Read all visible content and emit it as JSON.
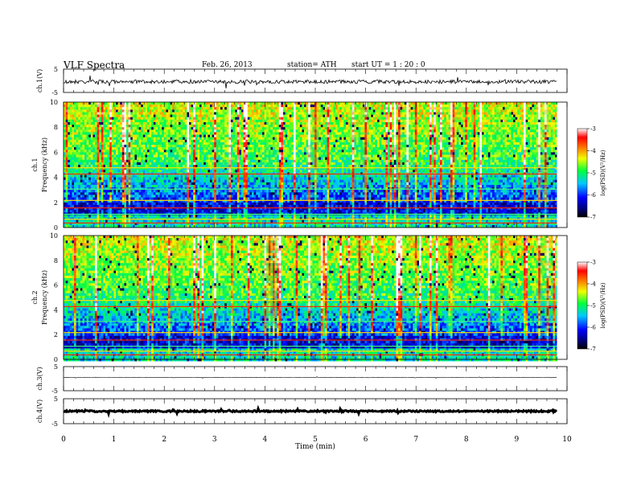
{
  "header": {
    "title": "VLF Spectra",
    "date": "Feb. 26, 2013",
    "station": "station= ATH",
    "start": "start  UT =   1  : 20 : 0"
  },
  "chart_data": [
    {
      "type": "line",
      "panel": "ch1-waveform",
      "ylabel": "ch.1(V)",
      "ylim": [
        -5,
        5
      ],
      "y_ticks": [
        "5",
        "-5"
      ],
      "x": [
        0,
        9.8
      ],
      "series": [
        {
          "values": [
            -0.4,
            -0.4
          ]
        }
      ]
    },
    {
      "type": "heatmap",
      "panel": "ch1-spectrogram",
      "ylabel": "ch.1\nFrequency  (kHz)",
      "ylim": [
        0,
        10
      ],
      "y_ticks": [
        "0",
        "2",
        "4",
        "6",
        "8",
        "10"
      ],
      "x_range": [
        0,
        9.8
      ],
      "colorbar": {
        "label": "log(PSD)(V²/Hz)",
        "ticks": [
          "-3",
          "-4",
          "-5",
          "-6",
          "-7"
        ],
        "range": [
          -7,
          -3
        ]
      }
    },
    {
      "type": "heatmap",
      "panel": "ch2-spectrogram",
      "ylabel": "ch.2\nFrequency  (kHz)",
      "ylim": [
        0,
        10
      ],
      "y_ticks": [
        "0",
        "2",
        "4",
        "6",
        "8",
        "10"
      ],
      "x_range": [
        0,
        9.8
      ],
      "colorbar": {
        "label": "log(PSD)(V²/Hz)",
        "ticks": [
          "-3",
          "-4",
          "-5",
          "-6",
          "-7"
        ],
        "range": [
          -7,
          -3
        ]
      }
    },
    {
      "type": "line",
      "panel": "ch3-waveform",
      "ylabel": "ch.3(V)",
      "ylim": [
        -5,
        5
      ],
      "y_ticks": [
        "5",
        "-5"
      ],
      "x": [
        0,
        9.8
      ],
      "series": [
        {
          "values": [
            0.5,
            0.5
          ]
        }
      ]
    },
    {
      "type": "line",
      "panel": "ch4-waveform",
      "ylabel": "ch.4(V)",
      "ylim": [
        -5,
        5
      ],
      "y_ticks": [
        "5",
        "-5"
      ],
      "x": [
        0,
        9.8
      ],
      "series": [
        {
          "values": [
            0,
            0
          ]
        }
      ]
    }
  ],
  "x_axis": {
    "label": "Time  (min)",
    "ticks": [
      "0",
      "1",
      "2",
      "3",
      "4",
      "5",
      "6",
      "7",
      "8",
      "9",
      "10"
    ],
    "xlim": [
      0,
      10
    ]
  }
}
